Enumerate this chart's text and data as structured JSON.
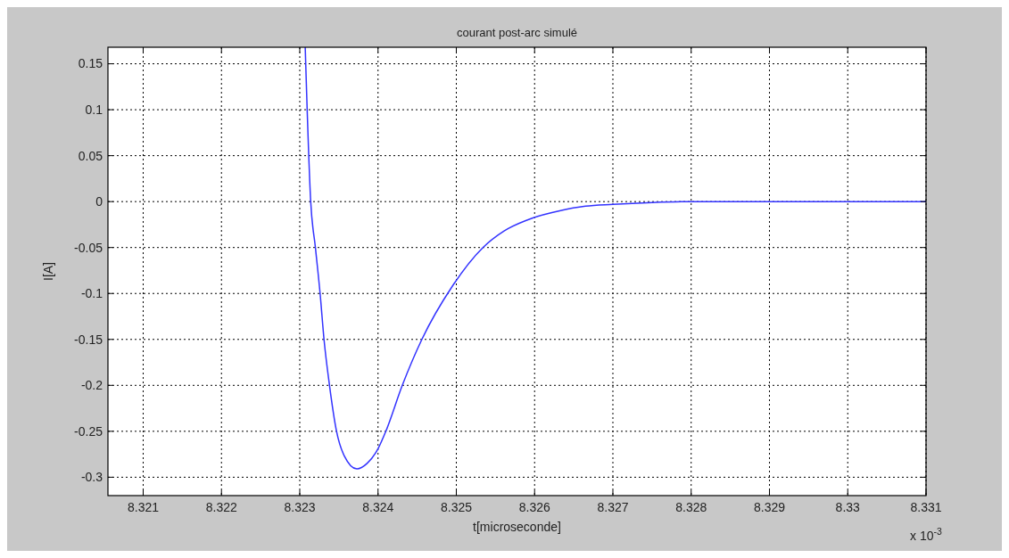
{
  "chart_data": {
    "type": "line",
    "title": "courant post-arc simulé",
    "xlabel": "t[microseconde]",
    "ylabel": "I[A]",
    "annotations": [
      "x 10$^{-3}$"
    ],
    "x": [
      8.32307,
      8.32314,
      8.3232,
      8.32326,
      8.32331,
      8.32338,
      8.32347,
      8.32357,
      8.32373,
      8.32386,
      8.324,
      8.3241,
      8.32431,
      8.32456,
      8.32495,
      8.32534,
      8.32561,
      8.32597,
      8.32632,
      8.32665,
      8.327,
      8.3275,
      8.328,
      8.331
    ],
    "series": [
      {
        "color": "#3333ff",
        "values": [
          0.168,
          0,
          -0.05,
          -0.1,
          -0.15,
          -0.2,
          -0.25,
          -0.277,
          -0.291,
          -0.285,
          -0.269,
          -0.25,
          -0.2,
          -0.15,
          -0.092,
          -0.05,
          -0.032,
          -0.018,
          -0.01,
          -0.005,
          -0.003,
          -0.001,
          0,
          0
        ]
      }
    ],
    "xlim": [
      8.32055,
      8.331
    ],
    "xticks": [
      8.321,
      8.322,
      8.323,
      8.324,
      8.325,
      8.326,
      8.327,
      8.328,
      8.329,
      8.33,
      8.331
    ],
    "ylim": [
      -0.32,
      0.168
    ],
    "yticks": [
      -0.3,
      -0.25,
      -0.2,
      -0.15,
      -0.1,
      -0.05,
      0,
      0.05,
      0.1,
      0.15
    ],
    "grid": true,
    "line_style": "solid",
    "marker": "none"
  }
}
